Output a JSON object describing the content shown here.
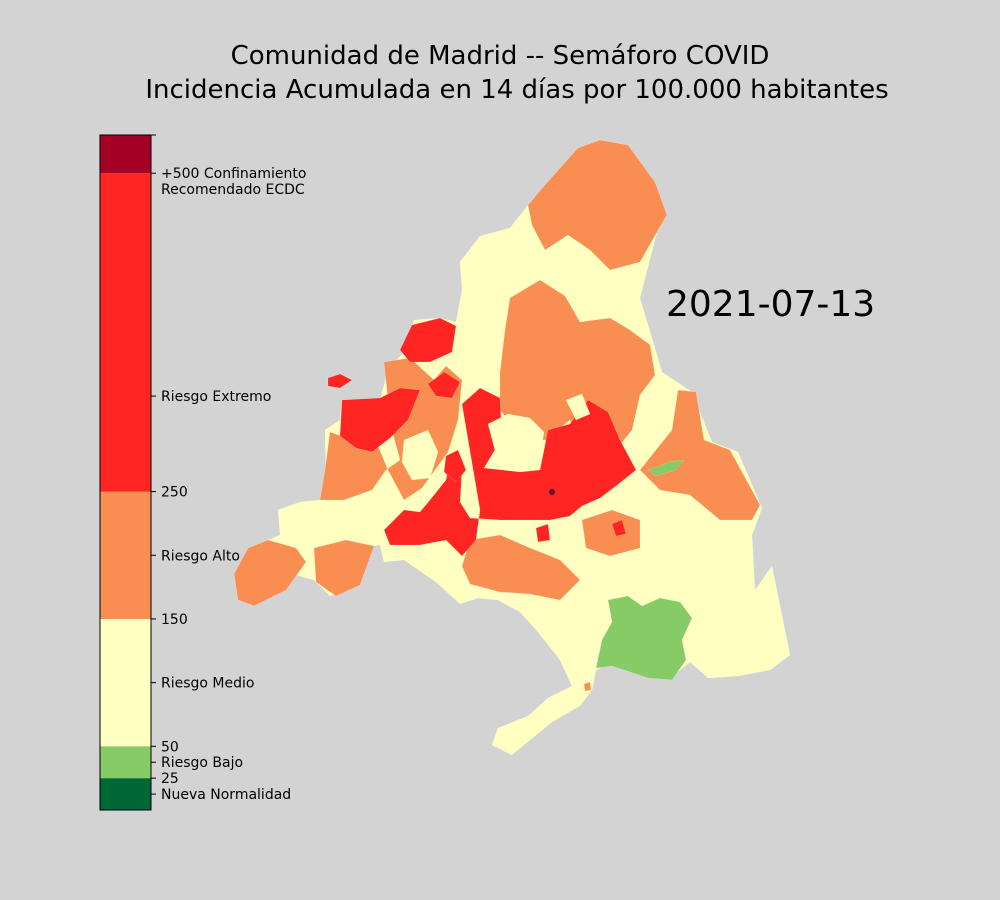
{
  "title": {
    "line1": "Comunidad de Madrid -- Semáforo COVID",
    "line2": "Incidencia Acumulada en 14 días por 100.000 habitantes"
  },
  "date": "2021-07-13",
  "colors": {
    "background": "#d3d3d3",
    "nueva_normalidad": "#006837",
    "riesgo_bajo": "#86cb66",
    "riesgo_medio": "#feffc0",
    "riesgo_alto": "#f98e52",
    "riesgo_extremo": "#ff2522",
    "confinamiento": "#a50026",
    "border": "#000000"
  },
  "colorbar": {
    "bands": [
      {
        "from": 0,
        "to": 25,
        "color": "#006837"
      },
      {
        "from": 25,
        "to": 50,
        "color": "#86cb66"
      },
      {
        "from": 50,
        "to": 150,
        "color": "#feffc0"
      },
      {
        "from": 150,
        "to": 250,
        "color": "#f98e52"
      },
      {
        "from": 250,
        "to": 500,
        "color": "#ff2522"
      },
      {
        "from": 500,
        "to": 530,
        "color": "#a50026"
      }
    ],
    "ticks": [
      {
        "value": 12.5,
        "lines": [
          "Nueva Normalidad"
        ]
      },
      {
        "value": 25,
        "lines": [
          "25"
        ]
      },
      {
        "value": 37.5,
        "lines": [
          "Riesgo Bajo"
        ]
      },
      {
        "value": 50,
        "lines": [
          "50"
        ]
      },
      {
        "value": 100,
        "lines": [
          "Riesgo Medio"
        ]
      },
      {
        "value": 150,
        "lines": [
          "150"
        ]
      },
      {
        "value": 200,
        "lines": [
          "Riesgo Alto"
        ]
      },
      {
        "value": 250,
        "lines": [
          "250"
        ]
      },
      {
        "value": 325,
        "lines": [
          "Riesgo Extremo"
        ]
      },
      {
        "value": 500,
        "lines": [
          "+500 Confinamiento",
          "Recomendado ECDC"
        ]
      },
      {
        "value": 530,
        "lines": [
          ""
        ]
      }
    ]
  },
  "map_regions": {
    "outline": "riesgo_medio",
    "north": "riesgo_alto",
    "northeast_band": "riesgo_alto",
    "west_mountains": "riesgo_alto",
    "southwest_tip": "riesgo_alto",
    "northwest_red_patches": "riesgo_extremo",
    "metro_core": "riesgo_extremo",
    "east_strip": "riesgo_alto",
    "southeast_green": "riesgo_bajo",
    "east_green_sliver": "riesgo_bajo",
    "south_tail": "riesgo_medio"
  }
}
